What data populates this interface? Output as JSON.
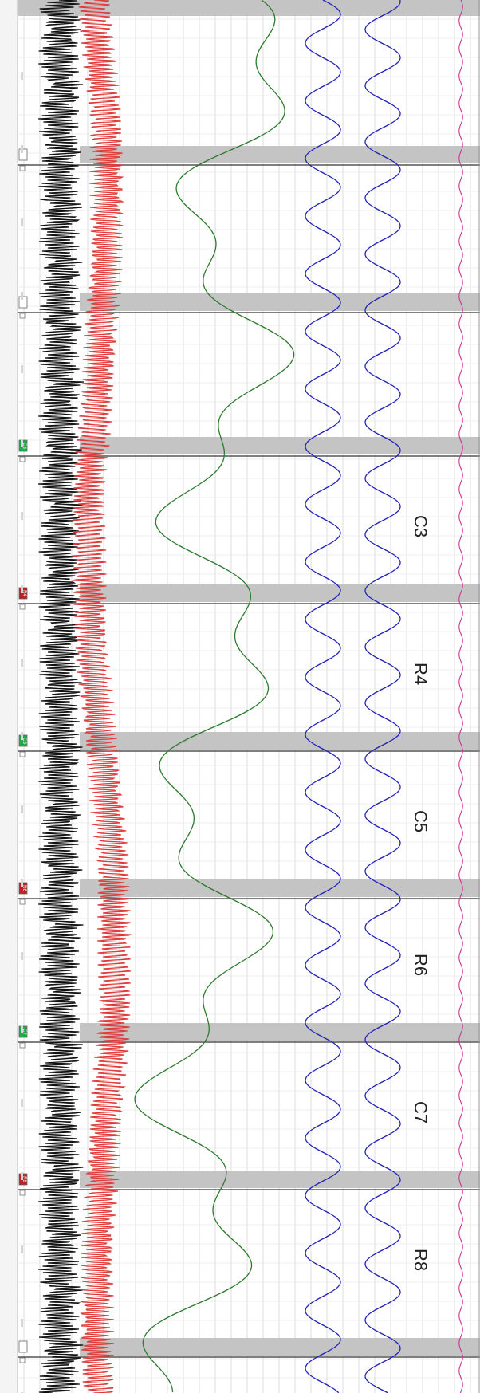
{
  "recording": {
    "markers": [
      {
        "code": "N1",
        "color": "#ffffff",
        "kind": "note"
      },
      {
        "code": "SR2",
        "color": "#ffffff",
        "kind": "note"
      },
      {
        "code": "C3",
        "color": "#22aa44",
        "kind": "condition"
      },
      {
        "code": "R4",
        "color": "#bb2222",
        "kind": "rest"
      },
      {
        "code": "C5",
        "color": "#22aa44",
        "kind": "condition"
      },
      {
        "code": "R6",
        "color": "#bb2222",
        "kind": "rest"
      },
      {
        "code": "C7",
        "color": "#22aa44",
        "kind": "condition"
      },
      {
        "code": "R8",
        "color": "#bb2222",
        "kind": "rest"
      },
      {
        "code": "SR",
        "color": "#ffffff",
        "kind": "note"
      }
    ],
    "phase_labels": [
      "C3",
      "R4",
      "C5",
      "R6",
      "C7",
      "R8"
    ],
    "channels": [
      {
        "id": "channel-1",
        "color": "#111111"
      },
      {
        "id": "channel-2",
        "color": "#e03a3a"
      },
      {
        "id": "channel-3",
        "color": "#2d7a2d"
      },
      {
        "id": "channel-4",
        "color": "#2222bb"
      },
      {
        "id": "channel-5",
        "color": "#2222bb"
      },
      {
        "id": "channel-6",
        "color": "#cc3399"
      }
    ]
  },
  "colors": {
    "grid": "#dcdcdc",
    "band": "#c4c4c4",
    "divider": "#555555",
    "left_strip": "#f4f4f4"
  }
}
